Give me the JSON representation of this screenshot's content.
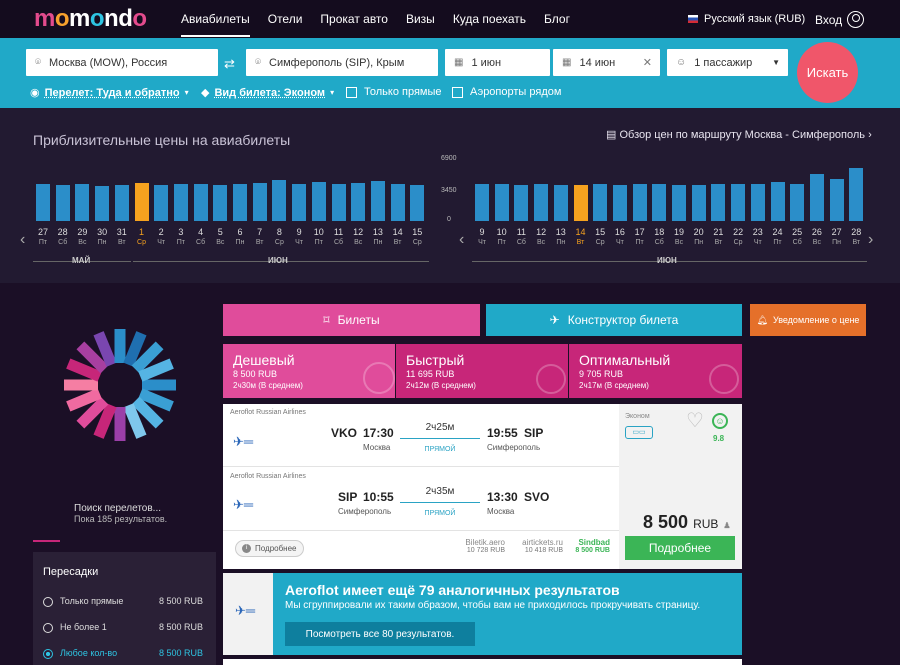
{
  "logo": "momondo",
  "nav": [
    "Авиабилеты",
    "Отели",
    "Прокат авто",
    "Визы",
    "Куда поехать",
    "Блог"
  ],
  "lang": "Русский язык (RUB)",
  "login": "Вход",
  "search": {
    "from": "Москва (MOW), Россия",
    "to": "Симферополь (SIP), Крым",
    "date1": "1 июн",
    "date2": "14 июн",
    "passengers": "1 пассажир",
    "button": "Искать",
    "trip": "Перелет: Туда и обратно",
    "ticket": "Вид билета: Эконом",
    "direct": "Только прямые",
    "nearby": "Аэропорты рядом"
  },
  "prices": {
    "title": "Приблизительные цены на авиабилеты",
    "link": "Обзор цен по маршруту Москва - Симферополь",
    "ymax": "6900",
    "ymid": "3450",
    "ymin": "0",
    "month_left_1": "МАЙ",
    "month_left_2": "ИЮН",
    "month_right": "ИЮН",
    "left_days": [
      {
        "d": "27",
        "w": "Пт",
        "v": 0.62
      },
      {
        "d": "28",
        "w": "Сб",
        "v": 0.6
      },
      {
        "d": "29",
        "w": "Вс",
        "v": 0.62
      },
      {
        "d": "30",
        "w": "Пн",
        "v": 0.58
      },
      {
        "d": "31",
        "w": "Вт",
        "v": 0.6
      },
      {
        "d": "1",
        "w": "Ср",
        "v": 0.63,
        "sel": true
      },
      {
        "d": "2",
        "w": "Чт",
        "v": 0.6
      },
      {
        "d": "3",
        "w": "Пт",
        "v": 0.62
      },
      {
        "d": "4",
        "w": "Сб",
        "v": 0.62
      },
      {
        "d": "5",
        "w": "Вс",
        "v": 0.6
      },
      {
        "d": "6",
        "w": "Пн",
        "v": 0.62
      },
      {
        "d": "7",
        "w": "Вт",
        "v": 0.63
      },
      {
        "d": "8",
        "w": "Ср",
        "v": 0.68
      },
      {
        "d": "9",
        "w": "Чт",
        "v": 0.62
      },
      {
        "d": "10",
        "w": "Пт",
        "v": 0.65
      },
      {
        "d": "11",
        "w": "Сб",
        "v": 0.62
      },
      {
        "d": "12",
        "w": "Вс",
        "v": 0.63
      },
      {
        "d": "13",
        "w": "Пн",
        "v": 0.67
      },
      {
        "d": "14",
        "w": "Вт",
        "v": 0.62
      },
      {
        "d": "15",
        "w": "Ср",
        "v": 0.6
      }
    ],
    "right_days": [
      {
        "d": "9",
        "w": "Чт",
        "v": 0.62
      },
      {
        "d": "10",
        "w": "Пт",
        "v": 0.62
      },
      {
        "d": "11",
        "w": "Сб",
        "v": 0.6
      },
      {
        "d": "12",
        "w": "Вс",
        "v": 0.62
      },
      {
        "d": "13",
        "w": "Пн",
        "v": 0.6
      },
      {
        "d": "14",
        "w": "Вт",
        "v": 0.6,
        "sel": true
      },
      {
        "d": "15",
        "w": "Ср",
        "v": 0.62
      },
      {
        "d": "16",
        "w": "Чт",
        "v": 0.6
      },
      {
        "d": "17",
        "w": "Пт",
        "v": 0.62
      },
      {
        "d": "18",
        "w": "Сб",
        "v": 0.62
      },
      {
        "d": "19",
        "w": "Вс",
        "v": 0.6
      },
      {
        "d": "20",
        "w": "Пн",
        "v": 0.6
      },
      {
        "d": "21",
        "w": "Вт",
        "v": 0.62
      },
      {
        "d": "22",
        "w": "Ср",
        "v": 0.62
      },
      {
        "d": "23",
        "w": "Чт",
        "v": 0.62
      },
      {
        "d": "24",
        "w": "Пт",
        "v": 0.65
      },
      {
        "d": "25",
        "w": "Сб",
        "v": 0.62
      },
      {
        "d": "26",
        "w": "Вс",
        "v": 0.78
      },
      {
        "d": "27",
        "w": "Пн",
        "v": 0.7
      },
      {
        "d": "28",
        "w": "Вт",
        "v": 0.88
      }
    ]
  },
  "loader": {
    "title": "Поиск перелетов...",
    "sub": "Пока 185 результатов."
  },
  "filter": {
    "title": "Пересадки",
    "rows": [
      {
        "label": "Только прямые",
        "price": "8 500 RUB"
      },
      {
        "label": "Не более 1",
        "price": "8 500 RUB"
      },
      {
        "label": "Любое кол-во",
        "price": "8 500 RUB"
      }
    ]
  },
  "tabs": {
    "tickets": "Билеты",
    "builder": "Конструктор билета",
    "notify": "Уведомление о цене"
  },
  "sort": [
    {
      "title": "Дешевый",
      "price": "8 500 RUB",
      "time": "2ч30м (В среднем)"
    },
    {
      "title": "Быстрый",
      "price": "11 695 RUB",
      "time": "2ч12м (В среднем)"
    },
    {
      "title": "Оптимальный",
      "price": "9 705 RUB",
      "time": "2ч17м (В среднем)"
    }
  ],
  "result": {
    "airline": "Aeroflot Russian Airlines",
    "out": {
      "from": "VKO",
      "dep": "17:30",
      "fromcity": "Москва",
      "dur": "2ч25м",
      "type": "ПРЯМОЙ",
      "arr": "19:55",
      "to": "SIP",
      "tocity": "Симферополь"
    },
    "back": {
      "from": "SIP",
      "dep": "10:55",
      "fromcity": "Симферополь",
      "dur": "2ч35м",
      "type": "ПРЯМОЙ",
      "arr": "13:30",
      "to": "SVO",
      "tocity": "Москва"
    },
    "class": "Эконом",
    "score": "9.8",
    "details": "Подробнее",
    "agents": [
      {
        "name": "Biletik.aero",
        "price": "10 728 RUB"
      },
      {
        "name": "airtickets.ru",
        "price": "10 418 RUB"
      },
      {
        "name": "Sindbad",
        "price": "8 500 RUB"
      }
    ],
    "price": "8 500",
    "currency": "RUB",
    "button": "Подробнее"
  },
  "aggregate": {
    "title": "Aeroflot имеет ещё 79 аналогичных результатов",
    "sub": "Мы сгруппировали их таким образом, чтобы вам не приходилось прокручивать страницу.",
    "button": "Посмотреть все 80 результатов."
  },
  "colors": {
    "accent": "#20a9c8",
    "search_button": "#f0566a",
    "bar": "#2b8ec9",
    "selected": "#f6a21f",
    "tab_pink": "#c72679"
  }
}
